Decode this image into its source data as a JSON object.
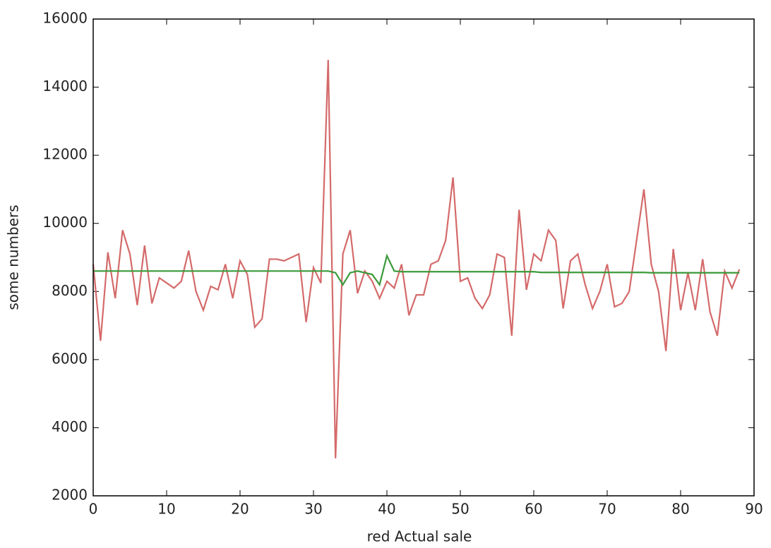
{
  "chart_data": {
    "type": "line",
    "x_label": "red Actual sale",
    "y_label": "some numbers",
    "x": [
      0,
      1,
      2,
      3,
      4,
      5,
      6,
      7,
      8,
      9,
      10,
      11,
      12,
      13,
      14,
      15,
      16,
      17,
      18,
      19,
      20,
      21,
      22,
      23,
      24,
      25,
      26,
      27,
      28,
      29,
      30,
      31,
      32,
      33,
      34,
      35,
      36,
      37,
      38,
      39,
      40,
      41,
      42,
      43,
      44,
      45,
      46,
      47,
      48,
      49,
      50,
      51,
      52,
      53,
      54,
      55,
      56,
      57,
      58,
      59,
      60,
      61,
      62,
      63,
      64,
      65,
      66,
      67,
      68,
      69,
      70,
      71,
      72,
      73,
      74,
      75,
      76,
      77,
      78,
      79,
      80,
      81,
      82,
      83,
      84,
      85,
      86,
      87,
      88
    ],
    "series": [
      {
        "color": "#d46a6a",
        "values": [
          8800,
          6550,
          9150,
          7800,
          9800,
          9100,
          7600,
          9350,
          7650,
          8400,
          8250,
          8100,
          8300,
          9200,
          8000,
          7450,
          8150,
          8050,
          8800,
          7800,
          8900,
          8500,
          6950,
          7200,
          8950,
          8950,
          8900,
          9000,
          9100,
          7100,
          8700,
          8250,
          14800,
          3100,
          9100,
          9800,
          7950,
          8600,
          8300,
          7800,
          8300,
          8100,
          8800,
          7300,
          7900,
          7900,
          8800,
          8900,
          9500,
          11350,
          8300,
          8400,
          7800,
          7500,
          7900,
          9100,
          9000,
          6700,
          10400,
          8050,
          9100,
          8900,
          9800,
          9500,
          7500,
          8900,
          9100,
          8200,
          7500,
          8000,
          8800,
          7550,
          7650,
          8000,
          9500,
          11000,
          8800,
          8000,
          6250,
          9250,
          7450,
          8550,
          7450,
          8950,
          7400,
          6700,
          8600,
          8100,
          8650
        ]
      },
      {
        "color": "#3a9a3a",
        "values": [
          8600,
          8600,
          8600,
          8600,
          8600,
          8600,
          8600,
          8600,
          8600,
          8600,
          8600,
          8600,
          8600,
          8600,
          8600,
          8600,
          8600,
          8600,
          8600,
          8600,
          8600,
          8600,
          8600,
          8600,
          8600,
          8600,
          8600,
          8600,
          8600,
          8600,
          8600,
          8600,
          8600,
          8550,
          8200,
          8550,
          8600,
          8550,
          8500,
          8200,
          9050,
          8600,
          8580,
          8580,
          8580,
          8580,
          8580,
          8580,
          8580,
          8580,
          8580,
          8580,
          8580,
          8580,
          8580,
          8580,
          8580,
          8580,
          8580,
          8580,
          8580,
          8560,
          8560,
          8560,
          8560,
          8560,
          8560,
          8560,
          8560,
          8560,
          8560,
          8560,
          8560,
          8560,
          8560,
          8560,
          8550,
          8550,
          8550,
          8550,
          8550,
          8550,
          8550,
          8550,
          8550,
          8550,
          8550,
          8550,
          8550
        ]
      }
    ],
    "xlim": [
      0,
      90
    ],
    "xticks": [
      0,
      10,
      20,
      30,
      40,
      50,
      60,
      70,
      80,
      90
    ],
    "ylim": [
      2000,
      16000
    ],
    "yticks": [
      2000,
      4000,
      6000,
      8000,
      10000,
      12000,
      14000,
      16000
    ]
  }
}
